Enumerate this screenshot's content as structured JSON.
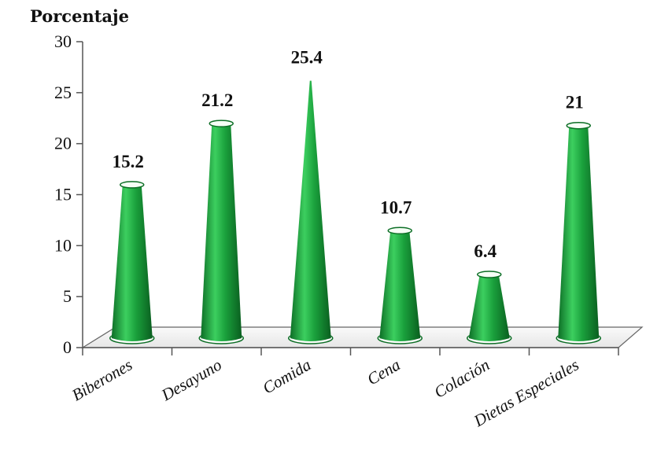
{
  "chart_data": {
    "type": "bar",
    "ylabel": "Porcentaje",
    "categories": [
      "Biberones",
      "Desayuno",
      "Comida",
      "Cena",
      "Colación",
      "Dietas Especiales"
    ],
    "values": [
      15.2,
      21.2,
      25.4,
      10.7,
      6.4,
      21
    ],
    "value_labels": [
      "15.2",
      "21.2",
      "25.4",
      "10.7",
      "6.4",
      "21"
    ],
    "yticks": [
      "0",
      "5",
      "10",
      "15",
      "20",
      "25",
      "30"
    ],
    "ylim": [
      0,
      30
    ],
    "bar_color": "#1a9a3a",
    "bar_highlight": "#3ccf5f",
    "legend": "none"
  }
}
